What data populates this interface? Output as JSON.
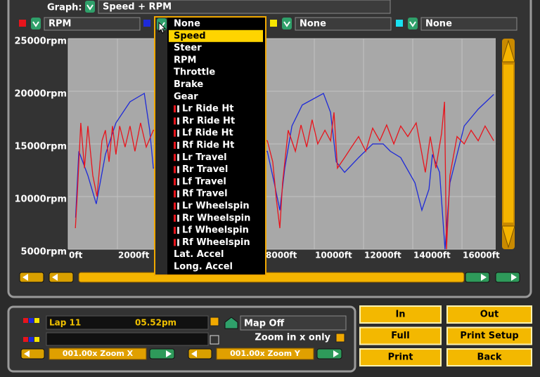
{
  "graph": {
    "label": "Graph:",
    "value": "Speed + RPM"
  },
  "channels": [
    {
      "color": "#e8141c",
      "value": "RPM"
    },
    {
      "color": "#1e2ad8"
    },
    {
      "color": "#f6e600",
      "value": "None"
    },
    {
      "color": "#19e0f0",
      "value": "None"
    }
  ],
  "dropdown": {
    "highlighted": 1,
    "items": [
      "None",
      "Speed",
      "Steer",
      "RPM",
      "Throttle",
      "Brake",
      "Gear",
      "Lr Ride Ht",
      "Rr Ride Ht",
      "Lf Ride Ht",
      "Rf Ride Ht",
      "Lr Travel",
      "Rr Travel",
      "Lf Travel",
      "Rf Travel",
      "Lr Wheelspin",
      "Rr Wheelspin",
      "Lf Wheelspin",
      "Rf Wheelspin",
      "Lat. Accel",
      "Long. Accel"
    ]
  },
  "chart_data": {
    "type": "line",
    "grid": true,
    "xlim": [
      0,
      17370
    ],
    "ylim": [
      5000,
      25000
    ],
    "xticks": [
      {
        "value": 0,
        "label": "0ft"
      },
      {
        "value": 2000,
        "label": "2000ft"
      },
      {
        "value": 4000,
        "label": "4000ft"
      },
      {
        "value": 6000,
        "label": "6000ft"
      },
      {
        "value": 8000,
        "label": "8000ft"
      },
      {
        "value": 10000,
        "label": "10000ft"
      },
      {
        "value": 12000,
        "label": "12000ft"
      },
      {
        "value": 14000,
        "label": "14000ft"
      },
      {
        "value": 16000,
        "label": "16000ft"
      }
    ],
    "yticks": [
      {
        "value": 5000,
        "label": "5000rpm"
      },
      {
        "value": 10000,
        "label": "10000rpm"
      },
      {
        "value": 15000,
        "label": "15000rpm"
      },
      {
        "value": 20000,
        "label": "20000rpm"
      },
      {
        "value": 25000,
        "label": "25000rpm"
      }
    ],
    "series": [
      {
        "color": "#1e2ad8",
        "x": [
          300,
          430,
          800,
          1140,
          1510,
          1940,
          2510,
          3090,
          3310,
          3460,
          8090,
          8370,
          8600,
          8800,
          9090,
          9510,
          10370,
          10660,
          10890,
          11230,
          11800,
          12370,
          12800,
          13090,
          13510,
          14090,
          14370,
          14660,
          14800,
          15090,
          15310,
          15510,
          16090,
          16660,
          17290
        ],
        "values": [
          8000,
          14300,
          12000,
          9300,
          14000,
          17000,
          19000,
          19800,
          16300,
          12700,
          14300,
          11300,
          8700,
          12700,
          16700,
          18700,
          19800,
          18000,
          13300,
          12300,
          13700,
          15000,
          15000,
          14300,
          13700,
          11300,
          8700,
          10700,
          14000,
          12300,
          5000,
          11300,
          16700,
          18300,
          19700
        ]
      },
      {
        "color": "#e8141c",
        "x": [
          290,
          370,
          510,
          660,
          800,
          1000,
          1170,
          1370,
          1510,
          1660,
          1800,
          1940,
          2090,
          2310,
          2510,
          2710,
          2940,
          3170,
          3460,
          8090,
          8310,
          8460,
          8600,
          8710,
          8940,
          9230,
          9460,
          9690,
          9910,
          10140,
          10430,
          10660,
          10800,
          10940,
          11230,
          11510,
          11800,
          12090,
          12370,
          12660,
          12940,
          13230,
          13510,
          13800,
          14140,
          14510,
          14710,
          14940,
          15170,
          15290,
          15370,
          15510,
          15800,
          16090,
          16370,
          16660,
          16940,
          17290
        ],
        "values": [
          7000,
          10300,
          17000,
          12700,
          16700,
          12000,
          10000,
          15300,
          16300,
          13300,
          16700,
          14000,
          16700,
          14700,
          16700,
          14300,
          17000,
          14700,
          16300,
          15300,
          13300,
          9700,
          7000,
          11300,
          16300,
          14300,
          16800,
          14700,
          17300,
          15000,
          16300,
          15300,
          18000,
          12700,
          13700,
          14700,
          15700,
          14300,
          16500,
          15300,
          16800,
          15000,
          16700,
          15700,
          17000,
          12300,
          15700,
          12700,
          16000,
          19000,
          5000,
          12000,
          15700,
          15000,
          16300,
          15300,
          16700,
          15300
        ]
      }
    ]
  },
  "info": {
    "lap": "Lap 11",
    "time": "05.52pm",
    "map": "Map Off",
    "zoom_x_only": "Zoom in x only",
    "zoom_x": "001.00x Zoom X",
    "zoom_y": "001.00x Zoom Y"
  },
  "buttons": [
    "In",
    "Out",
    "Full",
    "Print Setup",
    "Print",
    "Back"
  ]
}
